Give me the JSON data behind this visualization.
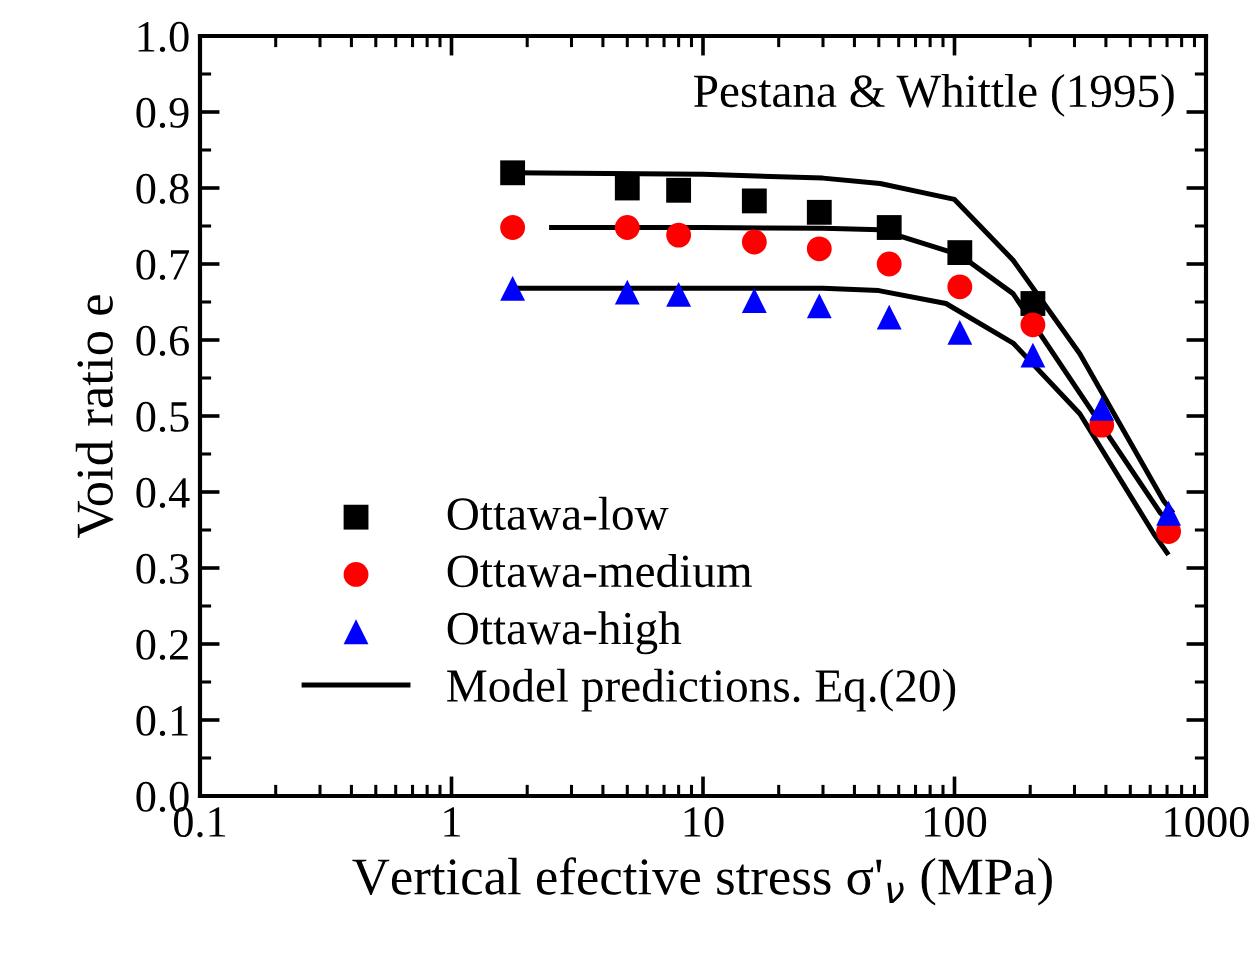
{
  "chart_data": {
    "type": "scatter",
    "xlabel": "Vertical efective stress σ'$_{ν}$ (MPa)",
    "ylabel": "Void ratio e",
    "annotations": [
      "Pestana & Whittle (1995)"
    ],
    "x": [
      1.75,
      5,
      8,
      16,
      29,
      55,
      105,
      205,
      385,
      710
    ],
    "series": [
      {
        "name": "Ottawa-low",
        "color": "#000000",
        "marker": "square",
        "values": [
          0.82,
          0.8,
          0.797,
          0.783,
          0.768,
          0.748,
          0.715,
          0.648,
          null,
          null
        ]
      },
      {
        "name": "Ottawa-medium",
        "color": "#ff0000",
        "marker": "circle",
        "values": [
          0.748,
          0.748,
          0.738,
          0.729,
          0.72,
          0.7,
          0.67,
          0.62,
          0.488,
          0.348
        ]
      },
      {
        "name": "Ottawa-high",
        "color": "#0000ff",
        "marker": "triangle",
        "values": [
          0.668,
          0.663,
          0.66,
          0.652,
          0.645,
          0.63,
          0.61,
          0.58,
          0.51,
          0.372
        ]
      },
      {
        "name": "Model predictions. Eq.(20)",
        "type": "line",
        "color": "#000000",
        "marker": "none",
        "x": [
          1.75,
          10,
          30,
          50.6,
          100,
          171,
          315,
          676,
          730
        ],
        "values": [
          0.82,
          0.818,
          0.813,
          0.806,
          0.785,
          0.705,
          0.582,
          0.389,
          0.375
        ]
      },
      {
        "type": "line",
        "color": "#000000",
        "marker": "none",
        "x": [
          2.5,
          10,
          30,
          50.6,
          105,
          171,
          315,
          660,
          720
        ],
        "values": [
          0.748,
          0.748,
          0.747,
          0.745,
          0.712,
          0.661,
          0.53,
          0.372,
          0.36
        ]
      },
      {
        "type": "line",
        "color": "#000000",
        "marker": "none",
        "x": [
          1.75,
          10,
          30,
          50,
          92.5,
          171,
          315,
          620,
          700
        ],
        "values": [
          0.668,
          0.668,
          0.668,
          0.665,
          0.648,
          0.596,
          0.503,
          0.345,
          0.32
        ]
      }
    ],
    "log": "x",
    "xlim": [
      0.1,
      1000
    ],
    "xticks": [
      0.1,
      1,
      10,
      100,
      1000
    ],
    "ylim": [
      0,
      1
    ],
    "yticks": [
      {
        "value": 0,
        "label": "0.0"
      },
      {
        "value": 0.1,
        "label": "0.1"
      },
      {
        "value": 0.2,
        "label": "0.2"
      },
      {
        "value": 0.3,
        "label": "0.3"
      },
      {
        "value": 0.4,
        "label": "0.4"
      },
      {
        "value": 0.5,
        "label": "0.5"
      },
      {
        "value": 0.6,
        "label": "0.6"
      },
      {
        "value": 0.7,
        "label": "0.7"
      },
      {
        "value": 0.8,
        "label": "0.8"
      },
      {
        "value": 0.9,
        "label": "0.9"
      },
      {
        "value": 1,
        "label": "1.0"
      }
    ],
    "grid": false,
    "legend": "bottom left",
    "line_style": "solid"
  }
}
